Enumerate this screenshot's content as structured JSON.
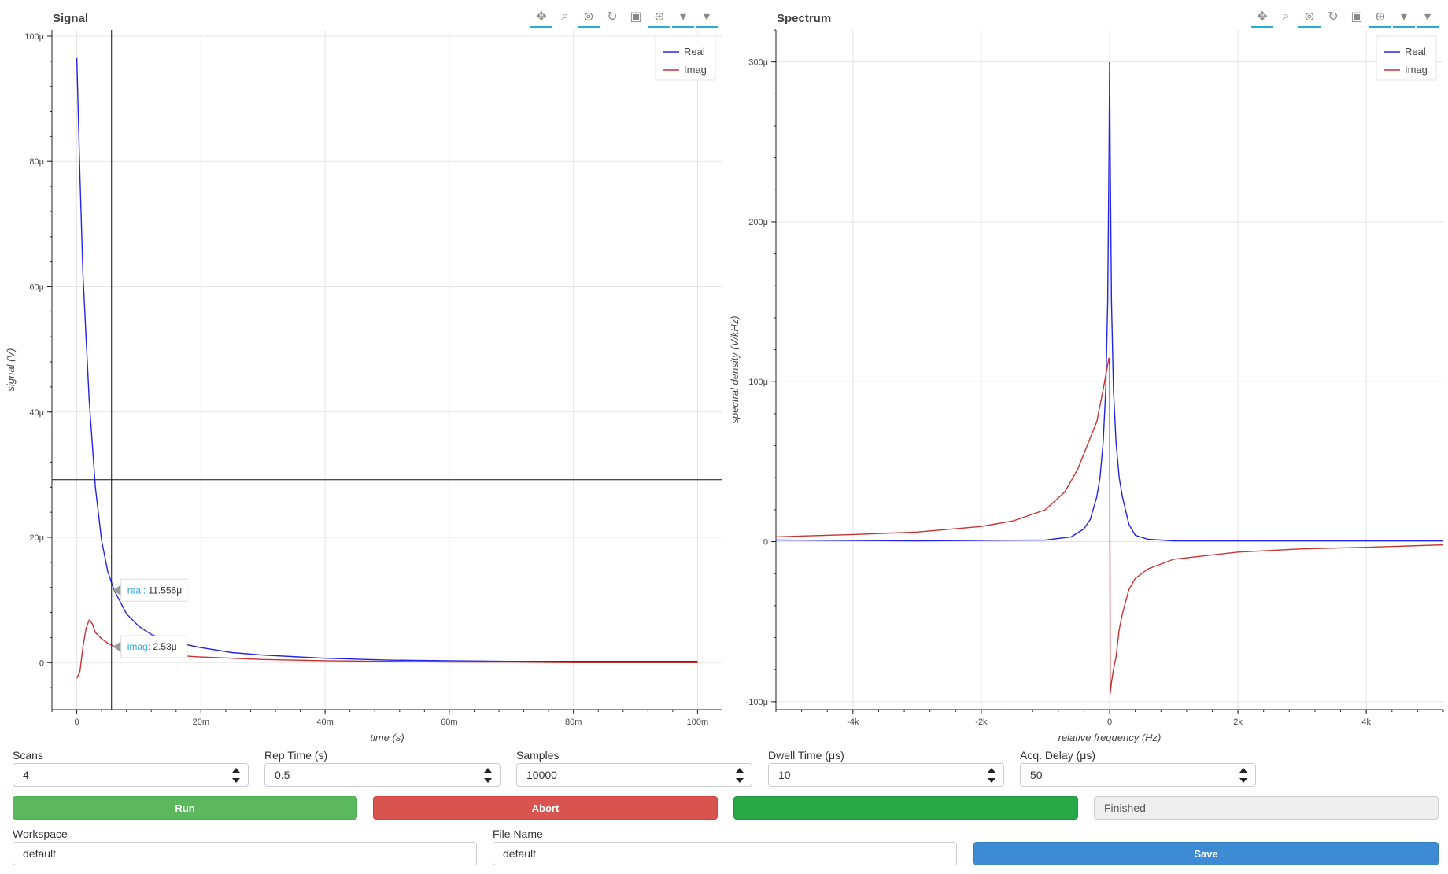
{
  "colors": {
    "real": "#2424e6",
    "imag": "#c83232",
    "tool_accent": "#26aae1",
    "run": "#5cb85c",
    "abort": "#d9534f",
    "progress": "#28a745",
    "save": "#3c8bd4"
  },
  "toolbar_icons": [
    "pan-icon",
    "box-zoom-icon",
    "wheel-zoom-icon",
    "reset-icon",
    "save-icon",
    "crosshair-icon",
    "hover-icon",
    "hover-icon"
  ],
  "signal_plot": {
    "title": "Signal",
    "hover_real_label": "real:",
    "hover_real_value": "11.556μ",
    "hover_imag_label": "imag:",
    "hover_imag_value": "2.53μ"
  },
  "spectrum_plot": {
    "title": "Spectrum"
  },
  "chart_data": [
    {
      "type": "line",
      "title": "Signal",
      "xlabel": "time (s)",
      "ylabel": "signal (V)",
      "xlim": [
        -0.004,
        0.104
      ],
      "ylim": [
        -7.5e-06,
        0.000101
      ],
      "x_ticks": [
        0,
        0.02,
        0.04,
        0.06,
        0.08,
        0.1
      ],
      "x_tick_labels": [
        "0",
        "20m",
        "40m",
        "60m",
        "80m",
        "100m"
      ],
      "y_ticks": [
        0,
        2e-05,
        4e-05,
        6e-05,
        8e-05,
        0.0001
      ],
      "y_tick_labels": [
        "0",
        "20μ",
        "40μ",
        "60μ",
        "80μ",
        "100μ"
      ],
      "grid": true,
      "legend_position": "top-right",
      "crosshair": {
        "x": 0.0056,
        "y": 2.92e-05
      },
      "series": [
        {
          "name": "Real",
          "x": [
            0,
            0.0005,
            0.001,
            0.002,
            0.003,
            0.004,
            0.005,
            0.006,
            0.008,
            0.01,
            0.012,
            0.015,
            0.02,
            0.025,
            0.03,
            0.04,
            0.05,
            0.06,
            0.07,
            0.08,
            0.09,
            0.1
          ],
          "y": [
            9.65e-05,
            7.8e-05,
            6.2e-05,
            4.2e-05,
            2.8e-05,
            1.95e-05,
            1.45e-05,
            1.16e-05,
            7.8e-06,
            5.8e-06,
            4.5e-06,
            3.4e-06,
            2.4e-06,
            1.6e-06,
            1.2e-06,
            7e-07,
            4e-07,
            3e-07,
            2e-07,
            2e-07,
            2e-07,
            2e-07
          ]
        },
        {
          "name": "Imag",
          "x": [
            0,
            0.0005,
            0.001,
            0.0015,
            0.002,
            0.0025,
            0.003,
            0.004,
            0.005,
            0.006,
            0.008,
            0.01,
            0.012,
            0.015,
            0.02,
            0.025,
            0.03,
            0.04,
            0.05,
            0.06,
            0.07,
            0.08,
            0.09,
            0.1
          ],
          "y": [
            -2.5e-06,
            -1.5e-06,
            2.5e-06,
            5.5e-06,
            6.8e-06,
            6.2e-06,
            4.8e-06,
            3.8e-06,
            3.1e-06,
            2.6e-06,
            2e-06,
            1.7e-06,
            1.5e-06,
            1.2e-06,
            9e-07,
            7e-07,
            5e-07,
            3e-07,
            2e-07,
            1e-07,
            1e-07,
            0,
            0,
            0
          ]
        }
      ]
    },
    {
      "type": "line",
      "title": "Spectrum",
      "xlabel": "relative frequency (Hz)",
      "ylabel": "spectral density (V/kHz)",
      "xlim": [
        -5200,
        5200
      ],
      "ylim": [
        -0.000105,
        0.00032
      ],
      "x_ticks": [
        -4000,
        -2000,
        0,
        2000,
        4000
      ],
      "x_tick_labels": [
        "-4k",
        "-2k",
        "0",
        "2k",
        "4k"
      ],
      "y_ticks": [
        -0.0001,
        0,
        0.0001,
        0.0002,
        0.0003
      ],
      "y_tick_labels": [
        "-100μ",
        "0",
        "100μ",
        "200μ",
        "300μ"
      ],
      "grid": true,
      "legend_position": "top-right",
      "series": [
        {
          "name": "Real",
          "x": [
            -5200,
            -3000,
            -1000,
            -600,
            -400,
            -300,
            -200,
            -150,
            -100,
            -60,
            -30,
            -10,
            0,
            10,
            30,
            60,
            100,
            150,
            200,
            300,
            400,
            600,
            1000,
            3000,
            5200
          ],
          "y": [
            1e-06,
            5e-07,
            1e-06,
            3e-06,
            8e-06,
            1.4e-05,
            2.8e-05,
            4e-05,
            6.2e-05,
            9.5e-05,
            0.00015,
            0.00024,
            0.0003,
            0.00024,
            0.00015,
            9.5e-05,
            6.2e-05,
            4e-05,
            2.8e-05,
            1.1e-05,
            4e-06,
            1.5e-06,
            5e-07,
            5e-07,
            5e-07
          ]
        },
        {
          "name": "Imag",
          "x": [
            -5200,
            -4000,
            -3000,
            -2000,
            -1500,
            -1000,
            -700,
            -500,
            -400,
            -300,
            -200,
            -100,
            -50,
            -10,
            0,
            10,
            30,
            60,
            100,
            150,
            200,
            300,
            400,
            600,
            1000,
            2000,
            3000,
            4000,
            5200
          ],
          "y": [
            3e-06,
            4.5e-06,
            6e-06,
            9.5e-06,
            1.3e-05,
            2e-05,
            3.1e-05,
            4.5e-05,
            5.5e-05,
            6.5e-05,
            7.5e-05,
            9.5e-05,
            0.000106,
            0.000115,
            0.00011,
            -9.5e-05,
            -8.8e-05,
            -8e-05,
            -7.2e-05,
            -5.5e-05,
            -4.5e-05,
            -3e-05,
            -2.3e-05,
            -1.7e-05,
            -1.1e-05,
            -6.5e-06,
            -4.5e-06,
            -3.5e-06,
            -2e-06
          ]
        }
      ]
    }
  ],
  "controls": {
    "scans": {
      "label": "Scans",
      "value": "4"
    },
    "rep_time": {
      "label": "Rep Time (s)",
      "value": "0.5"
    },
    "samples": {
      "label": "Samples",
      "value": "10000"
    },
    "dwell_time": {
      "label": "Dwell Time (μs)",
      "value": "10"
    },
    "acq_delay": {
      "label": "Acq. Delay (μs)",
      "value": "50"
    },
    "run_label": "Run",
    "abort_label": "Abort",
    "progress_fraction": 1.0,
    "status_text": "Finished",
    "workspace": {
      "label": "Workspace",
      "value": "default"
    },
    "file_name": {
      "label": "File Name",
      "value": "default"
    },
    "save_label": "Save"
  }
}
